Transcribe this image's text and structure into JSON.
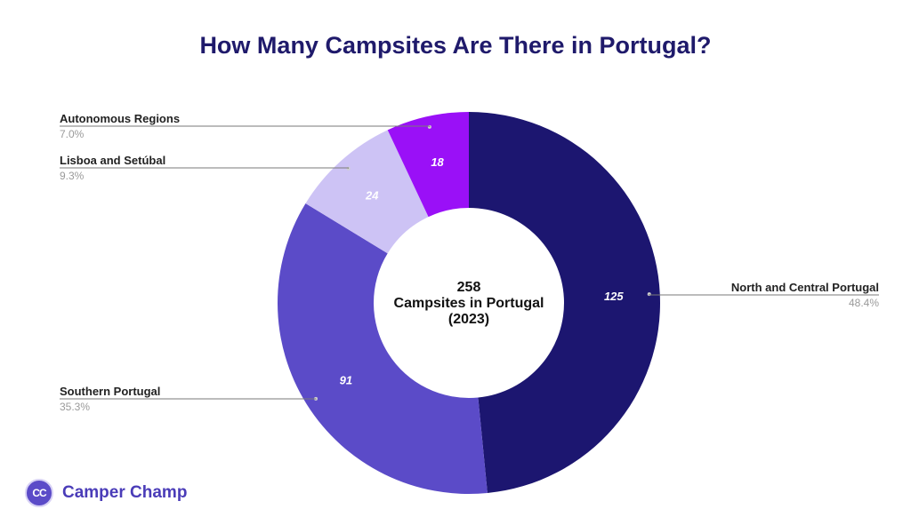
{
  "chart_data": {
    "type": "pie",
    "title": "How Many Campsites Are There in Portugal?",
    "center_label": [
      "258",
      "Campsites in Portugal",
      "(2023)"
    ],
    "slices": [
      {
        "label": "North and Central Portugal",
        "value": 125,
        "percent": "48.4%",
        "color": "#1c1670"
      },
      {
        "label": "Southern Portugal",
        "value": 91,
        "percent": "35.3%",
        "color": "#5b4bc8"
      },
      {
        "label": "Lisboa and Setúbal",
        "value": 24,
        "percent": "9.3%",
        "color": "#cdc3f5"
      },
      {
        "label": "Autonomous Regions",
        "value": 18,
        "percent": "7.0%",
        "color": "#9a10f7"
      }
    ]
  },
  "brand": {
    "logo_text": "CC",
    "name": "Camper Champ"
  }
}
